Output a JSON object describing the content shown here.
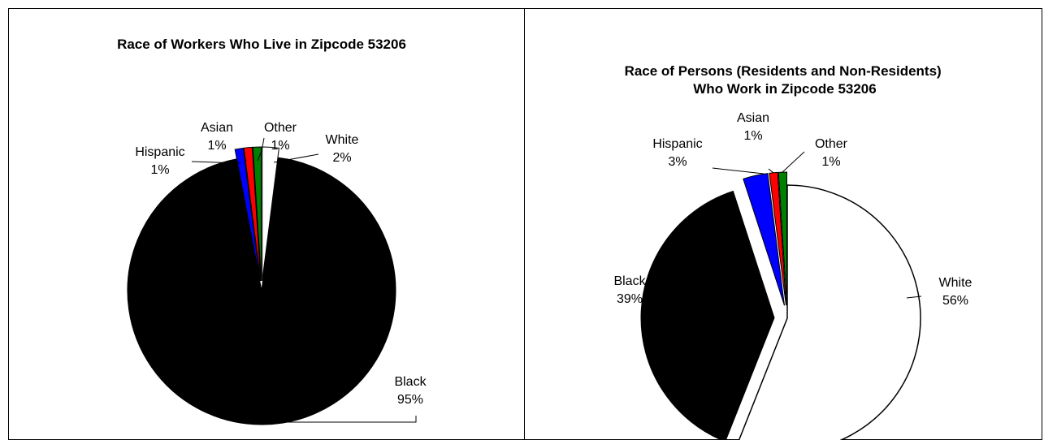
{
  "chart_data": [
    {
      "type": "pie",
      "title": "Race of Workers Who Live in Zipcode 53206",
      "slices": [
        {
          "name": "White",
          "value": 2,
          "pct_label": "2%",
          "color": "#ffffff"
        },
        {
          "name": "Black",
          "value": 95,
          "pct_label": "95%",
          "color": "#000000"
        },
        {
          "name": "Hispanic",
          "value": 1,
          "pct_label": "1%",
          "color": "#0000ff"
        },
        {
          "name": "Asian",
          "value": 1,
          "pct_label": "1%",
          "color": "#ff0000"
        },
        {
          "name": "Other",
          "value": 1,
          "pct_label": "1%",
          "color": "#008000"
        }
      ],
      "exploded": [
        "White",
        "Hispanic",
        "Asian",
        "Other"
      ]
    },
    {
      "type": "pie",
      "title": "Race of Persons (Residents and Non-Residents) Who Work in Zipcode 53206",
      "slices": [
        {
          "name": "White",
          "value": 56,
          "pct_label": "56%",
          "color": "#ffffff"
        },
        {
          "name": "Black",
          "value": 39,
          "pct_label": "39%",
          "color": "#000000"
        },
        {
          "name": "Hispanic",
          "value": 3,
          "pct_label": "3%",
          "color": "#0000ff"
        },
        {
          "name": "Asian",
          "value": 1,
          "pct_label": "1%",
          "color": "#ff0000"
        },
        {
          "name": "Other",
          "value": 1,
          "pct_label": "1%",
          "color": "#008000"
        }
      ],
      "exploded": [
        "Black",
        "Hispanic",
        "Asian",
        "Other"
      ]
    }
  ]
}
